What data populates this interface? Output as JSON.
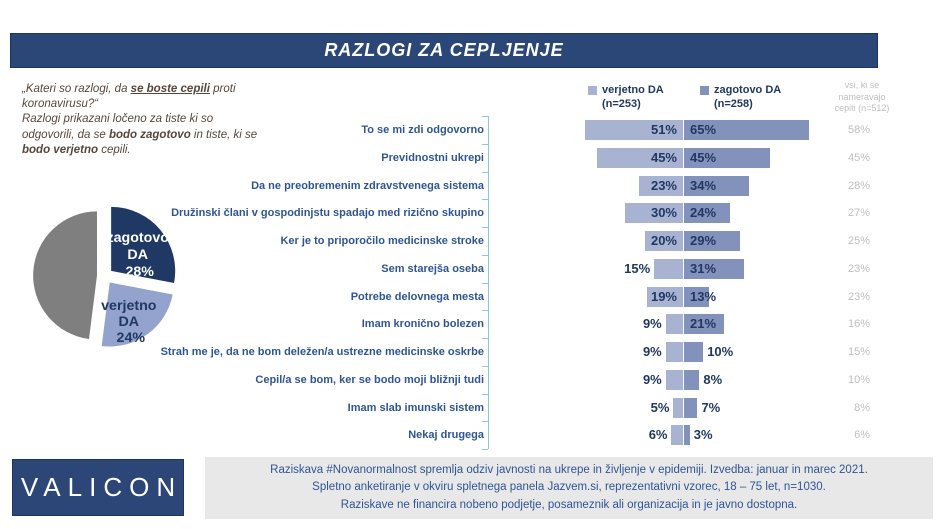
{
  "title": "RAZLOGI ZA CEPLJENJE",
  "intro": {
    "seg1": "„Kateri so razlogi, da ",
    "seg2": "se boste cepili",
    "seg3": " proti koronavirusu?“",
    "seg4": "Razlogi prikazani ločeno za tiste ki so odgovorili, da se ",
    "seg5": "bodo zagotovo",
    "seg6": " in tiste, ki se ",
    "seg7": "bodo verjetno",
    "seg8": " cepili."
  },
  "colors": {
    "title_bg": "#2B4778",
    "bar_light": "#A7B3D1",
    "bar_dark": "#8292BB",
    "pie_navy": "#203864",
    "pie_light": "#93A3CD",
    "pie_gray": "#7F7F7F",
    "axis_teal": "#8FC6D8",
    "vsi_gray": "#BFBFBF",
    "footer_text": "#2F5496"
  },
  "chart_data": [
    {
      "type": "pie",
      "note": "exploded pie, unlabeled gray slice = remainder",
      "slices": [
        {
          "label": "zagotovo DA",
          "value": 28,
          "color": "#203864",
          "lines": [
            "zagotovo",
            "DA",
            "28%"
          ]
        },
        {
          "label": "verjetno DA",
          "value": 24,
          "color": "#93A3CD",
          "lines": [
            "verjetno",
            "DA",
            "24%"
          ]
        },
        {
          "label": "",
          "value": 48,
          "color": "#7F7F7F",
          "lines": [
            "",
            "",
            ""
          ]
        }
      ]
    },
    {
      "type": "bar",
      "orientation": "horizontal",
      "legend": [
        {
          "label": "verjetno DA",
          "n": "(n=253)",
          "color": "#A7B3D1"
        },
        {
          "label": "zagotovo DA",
          "n": "(n=258)",
          "color": "#8292BB"
        }
      ],
      "extra_column": {
        "header_lines": [
          "vsi, ki se",
          "nameravajo",
          "cepiti (n=512)"
        ]
      },
      "rows": [
        {
          "label": "To se mi zdi odgovorno",
          "verjetno_pct": 51,
          "zagotovo_pct": 65,
          "vsi_pct": 58,
          "verjetno_label": "51%",
          "zagotovo_label": "65%",
          "vsi_label": "58%"
        },
        {
          "label": "Previdnostni ukrepi",
          "verjetno_pct": 45,
          "zagotovo_pct": 45,
          "vsi_pct": 45,
          "verjetno_label": "45%",
          "zagotovo_label": "45%",
          "vsi_label": "45%"
        },
        {
          "label": "Da ne preobremenim zdravstvenega sistema",
          "verjetno_pct": 23,
          "zagotovo_pct": 34,
          "vsi_pct": 28,
          "verjetno_label": "23%",
          "zagotovo_label": "34%",
          "vsi_label": "28%"
        },
        {
          "label": "Družinski člani v gospodinjstu spadajo med rizično skupino",
          "verjetno_pct": 30,
          "zagotovo_pct": 24,
          "vsi_pct": 27,
          "verjetno_label": "30%",
          "zagotovo_label": "24%",
          "vsi_label": "27%"
        },
        {
          "label": "Ker je to priporočilo medicinske stroke",
          "verjetno_pct": 20,
          "zagotovo_pct": 29,
          "vsi_pct": 25,
          "verjetno_label": "20%",
          "zagotovo_label": "29%",
          "vsi_label": "25%"
        },
        {
          "label": "Sem starejša oseba",
          "verjetno_pct": 15,
          "zagotovo_pct": 31,
          "vsi_pct": 23,
          "verjetno_label": "15%",
          "zagotovo_label": "31%",
          "vsi_label": "23%"
        },
        {
          "label": "Potrebe delovnega mesta",
          "verjetno_pct": 19,
          "zagotovo_pct": 13,
          "vsi_pct": 23,
          "verjetno_label": "19%",
          "zagotovo_label": "13%",
          "vsi_label": "23%"
        },
        {
          "label": "Imam kronično bolezen",
          "verjetno_pct": 9,
          "zagotovo_pct": 21,
          "vsi_pct": 16,
          "verjetno_label": "9%",
          "zagotovo_label": "21%",
          "vsi_label": "16%"
        },
        {
          "label": "Strah me je, da ne bom deležen/a ustrezne medicinske oskrbe",
          "verjetno_pct": 9,
          "zagotovo_pct": 10,
          "vsi_pct": 15,
          "verjetno_label": "9%",
          "zagotovo_label": "10%",
          "vsi_label": "15%"
        },
        {
          "label": "Cepil/a se bom, ker se bodo moji bližnji tudi",
          "verjetno_pct": 9,
          "zagotovo_pct": 8,
          "vsi_pct": 10,
          "verjetno_label": "9%",
          "zagotovo_label": "8%",
          "vsi_label": "10%"
        },
        {
          "label": "Imam slab imunski sistem",
          "verjetno_pct": 5,
          "zagotovo_pct": 7,
          "vsi_pct": 8,
          "verjetno_label": "5%",
          "zagotovo_label": "7%",
          "vsi_label": "8%"
        },
        {
          "label": "Nekaj drugega",
          "verjetno_pct": 6,
          "zagotovo_pct": 3,
          "vsi_pct": 6,
          "verjetno_label": "6%",
          "zagotovo_label": "3%",
          "vsi_label": "6%"
        }
      ]
    }
  ],
  "footer": {
    "lines": [
      "Raziskava #Novanormalnost spremlja odziv javnosti na ukrepe in življenje v epidemiji. Izvedba: januar in marec 2021.",
      "Spletno anketiranje v okviru spletnega panela Jazvem.si, reprezentativni vzorec, 18 – 75 let, n=1030.",
      "Raziskave ne financira nobeno podjetje, posameznik ali organizacija in je javno dostopna."
    ]
  },
  "logo": {
    "text": "VALICON"
  }
}
